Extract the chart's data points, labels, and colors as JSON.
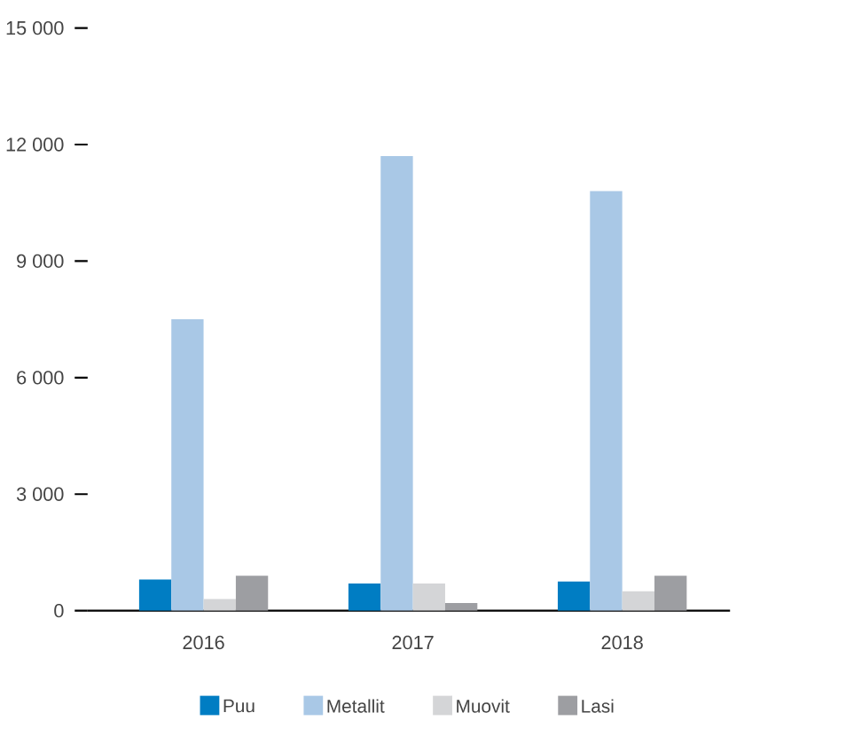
{
  "chart_data": {
    "type": "bar",
    "categories": [
      "2016",
      "2017",
      "2018"
    ],
    "series": [
      {
        "name": "Puu",
        "color": "#007dc3",
        "values": [
          800,
          700,
          750
        ]
      },
      {
        "name": "Metallit",
        "color": "#a9c8e6",
        "values": [
          7500,
          11700,
          10800
        ]
      },
      {
        "name": "Muovit",
        "color": "#d4d5d7",
        "values": [
          300,
          700,
          500
        ]
      },
      {
        "name": "Lasi",
        "color": "#9d9ea2",
        "values": [
          900,
          200,
          900
        ]
      }
    ],
    "ylim": [
      0,
      15000
    ],
    "yticks": [
      0,
      {
        "value": 3000,
        "label": "3 000"
      },
      {
        "value": 6000,
        "label": "6 000"
      },
      {
        "value": 9000,
        "label": "9 000"
      },
      {
        "value": 12000,
        "label": "12 000"
      },
      {
        "value": 15000,
        "label": "15 000"
      }
    ],
    "grid": false,
    "legend": "bottom"
  }
}
